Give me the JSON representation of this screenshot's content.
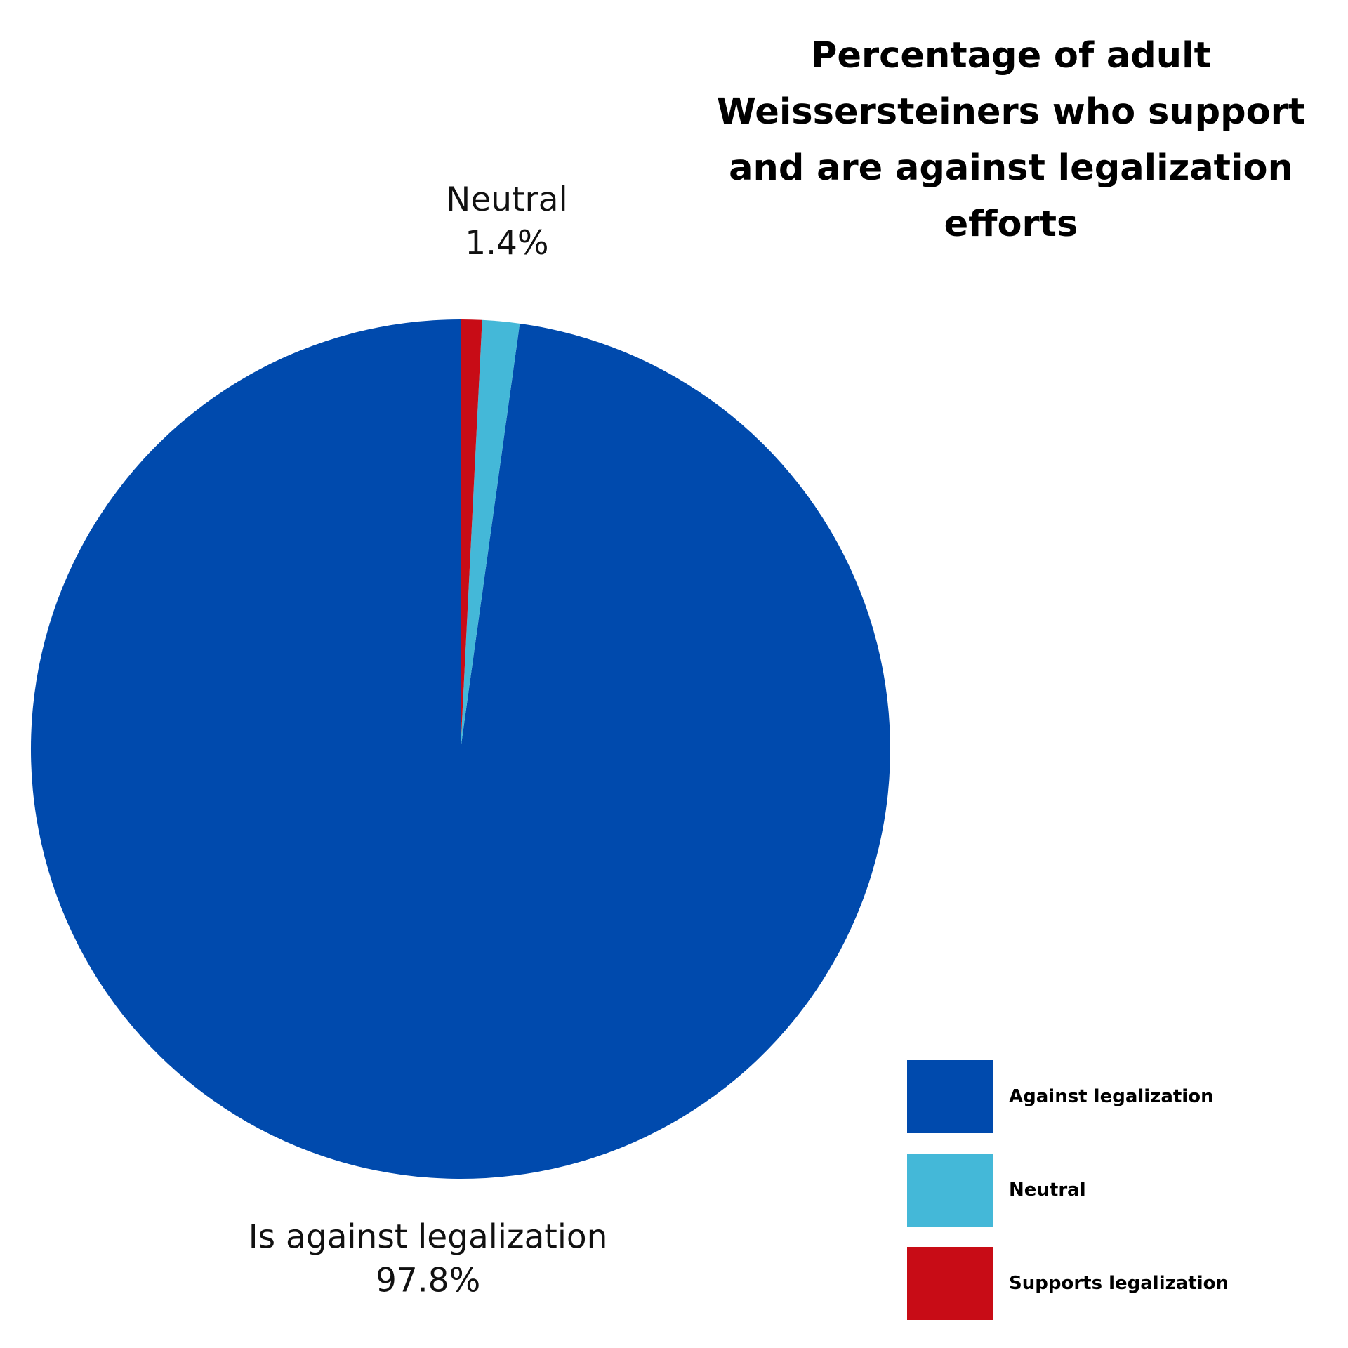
{
  "chart_data": {
    "type": "pie",
    "title": "Percentage of adult Weissersteiners who support and are against legalization efforts",
    "slices": [
      {
        "label": "Is against legalization",
        "legend_label": "Against legalization",
        "value": 97.8,
        "value_label": "97.8%",
        "color": "#004aad"
      },
      {
        "label": "Neutral",
        "legend_label": "Neutral",
        "value": 1.4,
        "value_label": "1.4%",
        "color": "#44b8d8"
      },
      {
        "label": "Supports legalization",
        "legend_label": "Supports legalization",
        "value": 0.8,
        "value_label": "",
        "color": "#c80c16"
      }
    ],
    "start_angle_deg": 0,
    "direction": "counterclockwise",
    "legend_position": "bottom-right"
  }
}
